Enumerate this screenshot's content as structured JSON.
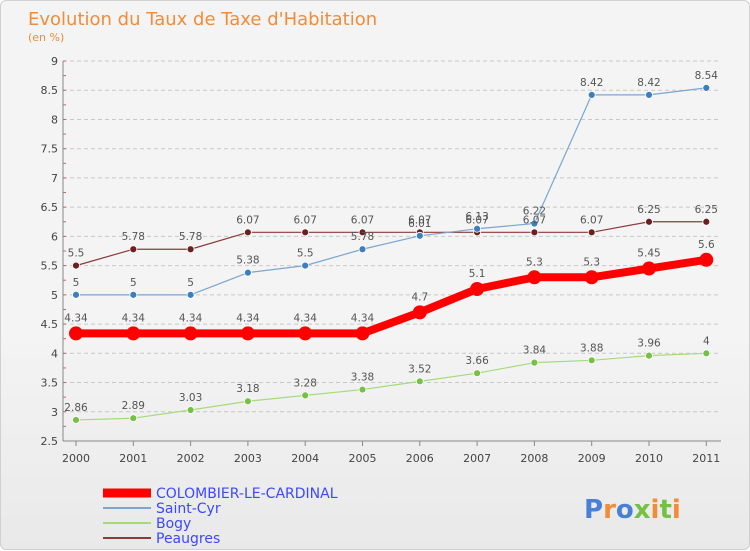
{
  "chart_data": {
    "type": "line",
    "title": "Evolution du Taux de Taxe d'Habitation",
    "subtitle": "(en %)",
    "x": [
      "2000",
      "2001",
      "2002",
      "2003",
      "2004",
      "2005",
      "2006",
      "2007",
      "2008",
      "2009",
      "2010",
      "2011"
    ],
    "ylim": [
      2.5,
      9
    ],
    "yticks": [
      2.5,
      3,
      3.5,
      4,
      4.5,
      5,
      5.5,
      6,
      6.5,
      7,
      7.5,
      8,
      8.5,
      9
    ],
    "grid": "horizontal dashed",
    "legend_position": "bottom-left",
    "series": [
      {
        "name": "Peaugres",
        "color": "#8b3a3a",
        "dot": "#6b1f1f",
        "width": 1.2,
        "radius": 3.5,
        "values": [
          5.5,
          5.78,
          5.78,
          6.07,
          6.07,
          6.07,
          6.07,
          6.07,
          6.07,
          6.07,
          6.25,
          6.25
        ],
        "labels": [
          "5.5",
          "5.78",
          "5.78",
          "6.07",
          "6.07",
          "6.07",
          "6.07",
          "6.07",
          "6.07",
          "6.07",
          "6.25",
          "6.25"
        ]
      },
      {
        "name": "Saint-Cyr",
        "color": "#7aa6cf",
        "dot": "#3c7fbf",
        "width": 1.2,
        "radius": 3.5,
        "values": [
          5,
          5,
          5,
          5.38,
          5.5,
          5.78,
          6.01,
          6.13,
          6.22,
          8.42,
          8.42,
          8.54
        ],
        "labels": [
          "5",
          "5",
          "5",
          "5.38",
          "5.5",
          "5.78",
          "6.01",
          "6.13",
          "6.22",
          "8.42",
          "8.42",
          "8.54"
        ]
      },
      {
        "name": "Bogy",
        "color": "#a5db7c",
        "dot": "#76c043",
        "width": 1.2,
        "radius": 3.5,
        "values": [
          2.86,
          2.89,
          3.03,
          3.18,
          3.28,
          3.38,
          3.52,
          3.66,
          3.84,
          3.88,
          3.96,
          4
        ],
        "labels": [
          "2.86",
          "2.89",
          "3.03",
          "3.18",
          "3.28",
          "3.38",
          "3.52",
          "3.66",
          "3.84",
          "3.88",
          "3.96",
          "4"
        ]
      },
      {
        "name": "COLOMBIER-LE-CARDINAL",
        "color": "#ff0000",
        "dot": "#ff0000",
        "width": 8,
        "radius": 7,
        "values": [
          4.34,
          4.34,
          4.34,
          4.34,
          4.34,
          4.34,
          4.7,
          5.1,
          5.3,
          5.3,
          5.45,
          5.6
        ],
        "labels": [
          "4.34",
          "4.34",
          "4.34",
          "4.34",
          "4.34",
          "4.34",
          "4.7",
          "5.1",
          "5.3",
          "5.3",
          "5.45",
          "5.6"
        ]
      }
    ],
    "legend_order": [
      "COLOMBIER-LE-CARDINAL",
      "Saint-Cyr",
      "Bogy",
      "Peaugres"
    ]
  },
  "logo": {
    "text": "Proxiti",
    "letter_colors": [
      "#4a7fd8",
      "#f08c3a",
      "#4a7fd8",
      "#76c043",
      "#f08c3a",
      "#76c043",
      "#f08c3a"
    ]
  }
}
